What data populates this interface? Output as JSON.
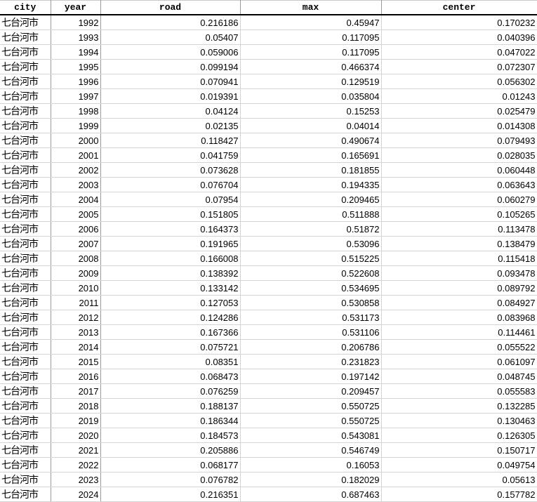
{
  "columns": [
    "city",
    "year",
    "road",
    "max",
    "center"
  ],
  "rows": [
    [
      "七台河市",
      "1992",
      "0.216186",
      "0.45947",
      "0.170232"
    ],
    [
      "七台河市",
      "1993",
      "0.05407",
      "0.117095",
      "0.040396"
    ],
    [
      "七台河市",
      "1994",
      "0.059006",
      "0.117095",
      "0.047022"
    ],
    [
      "七台河市",
      "1995",
      "0.099194",
      "0.466374",
      "0.072307"
    ],
    [
      "七台河市",
      "1996",
      "0.070941",
      "0.129519",
      "0.056302"
    ],
    [
      "七台河市",
      "1997",
      "0.019391",
      "0.035804",
      "0.01243"
    ],
    [
      "七台河市",
      "1998",
      "0.04124",
      "0.15253",
      "0.025479"
    ],
    [
      "七台河市",
      "1999",
      "0.02135",
      "0.04014",
      "0.014308"
    ],
    [
      "七台河市",
      "2000",
      "0.118427",
      "0.490674",
      "0.079493"
    ],
    [
      "七台河市",
      "2001",
      "0.041759",
      "0.165691",
      "0.028035"
    ],
    [
      "七台河市",
      "2002",
      "0.073628",
      "0.181855",
      "0.060448"
    ],
    [
      "七台河市",
      "2003",
      "0.076704",
      "0.194335",
      "0.063643"
    ],
    [
      "七台河市",
      "2004",
      "0.07954",
      "0.209465",
      "0.060279"
    ],
    [
      "七台河市",
      "2005",
      "0.151805",
      "0.511888",
      "0.105265"
    ],
    [
      "七台河市",
      "2006",
      "0.164373",
      "0.51872",
      "0.113478"
    ],
    [
      "七台河市",
      "2007",
      "0.191965",
      "0.53096",
      "0.138479"
    ],
    [
      "七台河市",
      "2008",
      "0.166008",
      "0.515225",
      "0.115418"
    ],
    [
      "七台河市",
      "2009",
      "0.138392",
      "0.522608",
      "0.093478"
    ],
    [
      "七台河市",
      "2010",
      "0.133142",
      "0.534695",
      "0.089792"
    ],
    [
      "七台河市",
      "2011",
      "0.127053",
      "0.530858",
      "0.084927"
    ],
    [
      "七台河市",
      "2012",
      "0.124286",
      "0.531173",
      "0.083968"
    ],
    [
      "七台河市",
      "2013",
      "0.167366",
      "0.531106",
      "0.114461"
    ],
    [
      "七台河市",
      "2014",
      "0.075721",
      "0.206786",
      "0.055522"
    ],
    [
      "七台河市",
      "2015",
      "0.08351",
      "0.231823",
      "0.061097"
    ],
    [
      "七台河市",
      "2016",
      "0.068473",
      "0.197142",
      "0.048745"
    ],
    [
      "七台河市",
      "2017",
      "0.076259",
      "0.209457",
      "0.055583"
    ],
    [
      "七台河市",
      "2018",
      "0.188137",
      "0.550725",
      "0.132285"
    ],
    [
      "七台河市",
      "2019",
      "0.186344",
      "0.550725",
      "0.130463"
    ],
    [
      "七台河市",
      "2020",
      "0.184573",
      "0.543081",
      "0.126305"
    ],
    [
      "七台河市",
      "2021",
      "0.205886",
      "0.546749",
      "0.150717"
    ],
    [
      "七台河市",
      "2022",
      "0.068177",
      "0.16053",
      "0.049754"
    ],
    [
      "七台河市",
      "2023",
      "0.076782",
      "0.182029",
      "0.05613"
    ],
    [
      "七台河市",
      "2024",
      "0.216351",
      "0.687463",
      "0.157782"
    ]
  ]
}
